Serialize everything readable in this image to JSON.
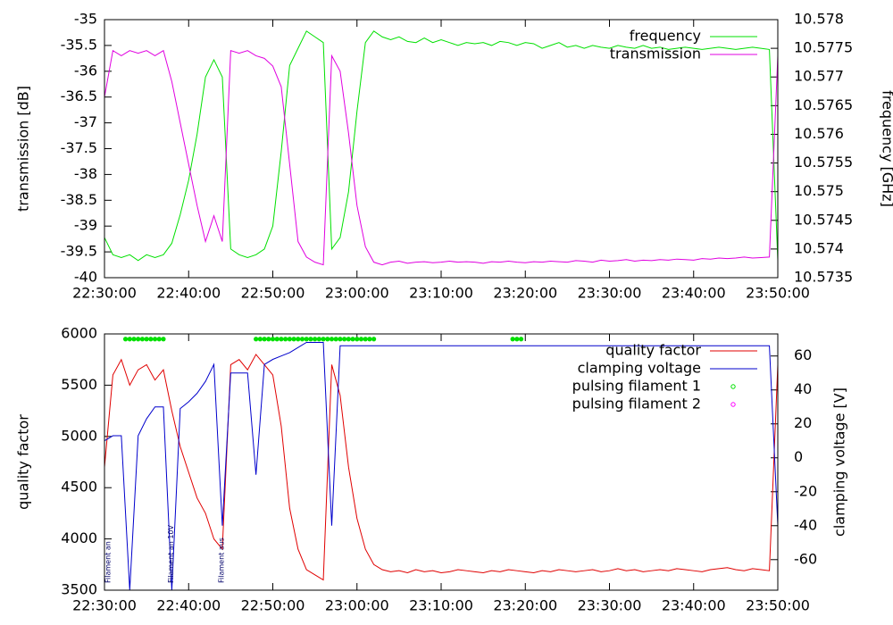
{
  "chart_data": [
    {
      "type": "line",
      "ylabel": "transmission [dB]",
      "y2label": "frequency [GHz]",
      "xlim": [
        "22:30:00",
        "23:50:00"
      ],
      "xticks": [
        "22:30:00",
        "22:40:00",
        "22:50:00",
        "23:00:00",
        "23:10:00",
        "23:20:00",
        "23:30:00",
        "23:40:00",
        "23:50:00"
      ],
      "ylim": [
        -40,
        -35
      ],
      "yticks": [
        -40,
        -39.5,
        -39,
        -38.5,
        -38,
        -37.5,
        -37,
        -36.5,
        -36,
        -35.5,
        -35
      ],
      "y2lim": [
        10.5735,
        10.578
      ],
      "y2ticks": [
        10.5735,
        10.574,
        10.5745,
        10.575,
        10.5755,
        10.576,
        10.5765,
        10.577,
        10.5775,
        10.578
      ],
      "legend": "top-right",
      "x": [
        "22:30:00",
        "22:31:00",
        "22:32:00",
        "22:33:00",
        "22:34:00",
        "22:35:00",
        "22:36:00",
        "22:37:00",
        "22:38:00",
        "22:39:00",
        "22:40:00",
        "22:41:00",
        "22:42:00",
        "22:43:00",
        "22:44:00",
        "22:45:00",
        "22:46:00",
        "22:47:00",
        "22:48:00",
        "22:49:00",
        "22:50:00",
        "22:51:00",
        "22:52:00",
        "22:53:00",
        "22:54:00",
        "22:55:00",
        "22:56:00",
        "22:57:00",
        "22:58:00",
        "22:59:00",
        "23:00:00",
        "23:01:00",
        "23:02:00",
        "23:03:00",
        "23:04:00",
        "23:05:00",
        "23:06:00",
        "23:07:00",
        "23:08:00",
        "23:09:00",
        "23:10:00",
        "23:11:00",
        "23:12:00",
        "23:13:00",
        "23:14:00",
        "23:15:00",
        "23:16:00",
        "23:17:00",
        "23:18:00",
        "23:19:00",
        "23:20:00",
        "23:21:00",
        "23:22:00",
        "23:23:00",
        "23:24:00",
        "23:25:00",
        "23:26:00",
        "23:27:00",
        "23:28:00",
        "23:29:00",
        "23:30:00",
        "23:31:00",
        "23:32:00",
        "23:33:00",
        "23:34:00",
        "23:35:00",
        "23:36:00",
        "23:37:00",
        "23:38:00",
        "23:39:00",
        "23:40:00",
        "23:41:00",
        "23:42:00",
        "23:43:00",
        "23:44:00",
        "23:45:00",
        "23:46:00",
        "23:47:00",
        "23:48:00",
        "23:49:00",
        "23:50:00"
      ],
      "series": [
        {
          "name": "frequency",
          "color": "#00e000",
          "axis": "y2",
          "style": "line",
          "values": [
            10.5742,
            10.5739,
            10.57385,
            10.5739,
            10.5738,
            10.5739,
            10.57385,
            10.5739,
            10.5741,
            10.5746,
            10.5752,
            10.576,
            10.577,
            10.5773,
            10.577,
            10.574,
            10.5739,
            10.57385,
            10.5739,
            10.574,
            10.5744,
            10.5757,
            10.5772,
            10.5775,
            10.5778,
            10.5777,
            10.5776,
            10.574,
            10.5742,
            10.575,
            10.5764,
            10.5776,
            10.5778,
            10.5777,
            10.57765,
            10.5777,
            10.57762,
            10.5776,
            10.57768,
            10.5776,
            10.57765,
            10.5776,
            10.57755,
            10.5776,
            10.57758,
            10.5776,
            10.57755,
            10.57762,
            10.5776,
            10.57755,
            10.5776,
            10.57758,
            10.5775,
            10.57755,
            10.5776,
            10.57752,
            10.57755,
            10.5775,
            10.57755,
            10.57752,
            10.5775,
            10.57755,
            10.57752,
            10.5775,
            10.57755,
            10.5775,
            10.57752,
            10.57748,
            10.5775,
            10.57752,
            10.5775,
            10.57748,
            10.5775,
            10.57752,
            10.5775,
            10.57748,
            10.5775,
            10.57752,
            10.5775,
            10.57748,
            10.5738
          ]
        },
        {
          "name": "transmission",
          "color": "#e000e0",
          "style": "line",
          "values": [
            -36.5,
            -35.6,
            -35.7,
            -35.6,
            -35.65,
            -35.6,
            -35.7,
            -35.6,
            -36.2,
            -37.0,
            -37.8,
            -38.6,
            -39.3,
            -38.8,
            -39.3,
            -35.6,
            -35.65,
            -35.6,
            -35.7,
            -35.75,
            -35.9,
            -36.3,
            -37.8,
            -39.3,
            -39.6,
            -39.7,
            -39.75,
            -35.7,
            -36.0,
            -37.2,
            -38.6,
            -39.4,
            -39.7,
            -39.75,
            -39.7,
            -39.68,
            -39.72,
            -39.7,
            -39.69,
            -39.71,
            -39.7,
            -39.68,
            -39.7,
            -39.69,
            -39.7,
            -39.72,
            -39.69,
            -39.7,
            -39.68,
            -39.7,
            -39.71,
            -39.69,
            -39.7,
            -39.68,
            -39.69,
            -39.7,
            -39.67,
            -39.68,
            -39.7,
            -39.66,
            -39.68,
            -39.67,
            -39.65,
            -39.68,
            -39.66,
            -39.67,
            -39.65,
            -39.66,
            -39.64,
            -39.65,
            -39.66,
            -39.63,
            -39.64,
            -39.62,
            -39.63,
            -39.62,
            -39.6,
            -39.62,
            -39.61,
            -39.6,
            -35.7
          ]
        }
      ]
    },
    {
      "type": "line",
      "ylabel": "quality factor",
      "y2label": "clamping voltage [V]",
      "xlim": [
        "22:30:00",
        "23:50:00"
      ],
      "xticks": [
        "22:30:00",
        "22:40:00",
        "22:50:00",
        "23:00:00",
        "23:10:00",
        "23:20:00",
        "23:30:00",
        "23:40:00",
        "23:50:00"
      ],
      "ylim": [
        3500,
        6000
      ],
      "yticks": [
        3500,
        4000,
        4500,
        5000,
        5500,
        6000
      ],
      "y2lim": [
        -78,
        73
      ],
      "y2ticks": [
        -60,
        -40,
        -20,
        0,
        20,
        40,
        60
      ],
      "legend": "top-right",
      "x": [
        "22:30:00",
        "22:31:00",
        "22:32:00",
        "22:33:00",
        "22:34:00",
        "22:35:00",
        "22:36:00",
        "22:37:00",
        "22:38:00",
        "22:39:00",
        "22:40:00",
        "22:41:00",
        "22:42:00",
        "22:43:00",
        "22:44:00",
        "22:45:00",
        "22:46:00",
        "22:47:00",
        "22:48:00",
        "22:49:00",
        "22:50:00",
        "22:51:00",
        "22:52:00",
        "22:53:00",
        "22:54:00",
        "22:55:00",
        "22:56:00",
        "22:57:00",
        "22:58:00",
        "22:59:00",
        "23:00:00",
        "23:01:00",
        "23:02:00",
        "23:03:00",
        "23:04:00",
        "23:05:00",
        "23:06:00",
        "23:07:00",
        "23:08:00",
        "23:09:00",
        "23:10:00",
        "23:11:00",
        "23:12:00",
        "23:13:00",
        "23:14:00",
        "23:15:00",
        "23:16:00",
        "23:17:00",
        "23:18:00",
        "23:19:00",
        "23:20:00",
        "23:21:00",
        "23:22:00",
        "23:23:00",
        "23:24:00",
        "23:25:00",
        "23:26:00",
        "23:27:00",
        "23:28:00",
        "23:29:00",
        "23:30:00",
        "23:31:00",
        "23:32:00",
        "23:33:00",
        "23:34:00",
        "23:35:00",
        "23:36:00",
        "23:37:00",
        "23:38:00",
        "23:39:00",
        "23:40:00",
        "23:41:00",
        "23:42:00",
        "23:43:00",
        "23:44:00",
        "23:45:00",
        "23:46:00",
        "23:47:00",
        "23:48:00",
        "23:49:00",
        "23:50:00"
      ],
      "series": [
        {
          "name": "quality factor",
          "color": "#e00000",
          "style": "line",
          "values": [
            4700,
            5600,
            5750,
            5500,
            5650,
            5700,
            5550,
            5650,
            5250,
            4900,
            4650,
            4400,
            4250,
            4000,
            3900,
            5700,
            5750,
            5650,
            5800,
            5700,
            5600,
            5100,
            4300,
            3900,
            3700,
            3650,
            3600,
            5700,
            5400,
            4700,
            4200,
            3900,
            3750,
            3700,
            3680,
            3690,
            3670,
            3700,
            3680,
            3690,
            3670,
            3680,
            3700,
            3690,
            3680,
            3670,
            3690,
            3680,
            3700,
            3690,
            3680,
            3670,
            3690,
            3680,
            3700,
            3690,
            3680,
            3690,
            3700,
            3680,
            3690,
            3710,
            3690,
            3700,
            3680,
            3690,
            3700,
            3690,
            3710,
            3700,
            3690,
            3680,
            3700,
            3710,
            3720,
            3700,
            3690,
            3710,
            3700,
            3690,
            5700
          ]
        },
        {
          "name": "clamping voltage",
          "color": "#0000cc",
          "axis": "y2",
          "style": "line",
          "values": [
            10,
            13,
            13,
            -78,
            13,
            23,
            30,
            30,
            -78,
            29,
            33,
            38,
            45,
            55,
            -40,
            50,
            50,
            50,
            -10,
            55,
            58,
            60,
            62,
            65,
            68,
            68,
            68,
            -40,
            66,
            66,
            66,
            66,
            66,
            66,
            66,
            66,
            66,
            66,
            66,
            66,
            66,
            66,
            66,
            66,
            66,
            66,
            66,
            66,
            66,
            66,
            66,
            66,
            66,
            66,
            66,
            66,
            66,
            66,
            66,
            66,
            66,
            66,
            66,
            66,
            66,
            66,
            66,
            66,
            66,
            66,
            66,
            66,
            66,
            66,
            66,
            66,
            66,
            66,
            66,
            66,
            -40
          ]
        },
        {
          "name": "pulsing filament 1",
          "color": "#00e000",
          "style": "points",
          "x": [
            "22:32:30",
            "22:33:00",
            "22:33:30",
            "22:34:00",
            "22:34:30",
            "22:35:00",
            "22:35:30",
            "22:36:00",
            "22:36:30",
            "22:37:00",
            "22:48:00",
            "22:48:30",
            "22:49:00",
            "22:49:30",
            "22:50:00",
            "22:50:30",
            "22:51:00",
            "22:51:30",
            "22:52:00",
            "22:52:30",
            "22:53:00",
            "22:53:30",
            "22:54:00",
            "22:54:30",
            "22:55:00",
            "22:55:30",
            "22:56:00",
            "22:56:30",
            "22:57:00",
            "22:57:30",
            "22:58:00",
            "22:58:30",
            "22:59:00",
            "22:59:30",
            "23:00:00",
            "23:00:30",
            "23:01:00",
            "23:01:30",
            "23:02:00",
            "23:18:30",
            "23:19:00",
            "23:19:30"
          ],
          "values": [
            5950,
            5950,
            5950,
            5950,
            5950,
            5950,
            5950,
            5950,
            5950,
            5950,
            5950,
            5950,
            5950,
            5950,
            5950,
            5950,
            5950,
            5950,
            5950,
            5950,
            5950,
            5950,
            5950,
            5950,
            5950,
            5950,
            5950,
            5950,
            5950,
            5950,
            5950,
            5950,
            5950,
            5950,
            5950,
            5950,
            5950,
            5950,
            5950,
            5950,
            5950,
            5950
          ]
        },
        {
          "name": "pulsing filament 2",
          "color": "#ff00ff",
          "style": "points",
          "x": [],
          "values": []
        }
      ],
      "annotations": [
        {
          "text": "Filament an",
          "x": "22:30:00"
        },
        {
          "text": "Filament an 10V",
          "x": "22:37:30"
        },
        {
          "text": "Filament aus",
          "x": "22:43:30"
        }
      ]
    }
  ]
}
